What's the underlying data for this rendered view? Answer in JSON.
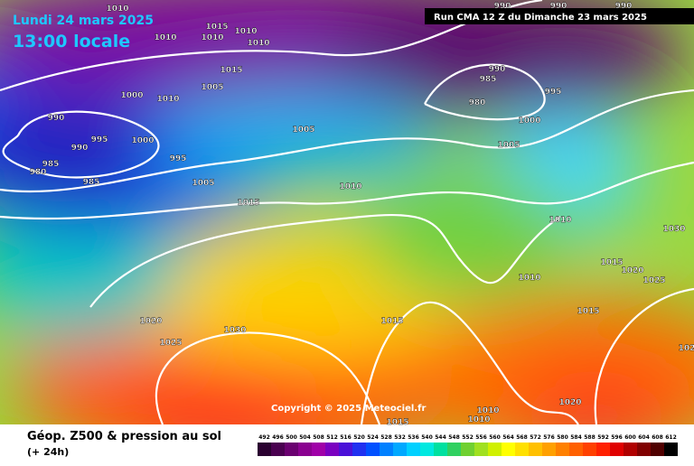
{
  "header": {
    "date": "Lundi 24 mars 2025",
    "time": "13:00 locale",
    "run": "Run CMA 12 Z du Dimanche 23 mars 2025"
  },
  "copyright": "Copyright © 2025 Meteociel.fr",
  "footer": {
    "title": "Géop. Z500 & pression au sol",
    "lead": "(+ 24h)"
  },
  "isobar_labels": [
    "1010",
    "1015",
    "1010",
    "1010",
    "1010",
    "1010",
    "1015",
    "1000",
    "1010",
    "1005",
    "990",
    "995",
    "990",
    "1000",
    "995",
    "985",
    "980",
    "985",
    "1005",
    "1015",
    "1005",
    "1010",
    "990",
    "985",
    "980",
    "995",
    "1000",
    "1005",
    "1010",
    "1030",
    "1015",
    "1020",
    "1025",
    "1010",
    "1015",
    "1015",
    "1020",
    "1030",
    "1025",
    "1020",
    "1010",
    "1010",
    "1015",
    "990",
    "990",
    "990",
    "102"
  ],
  "colorbar": {
    "ticks": [
      492,
      496,
      500,
      504,
      508,
      512,
      516,
      520,
      524,
      528,
      532,
      536,
      540,
      544,
      548,
      552,
      556,
      560,
      564,
      568,
      572,
      576,
      580,
      584,
      588,
      592,
      596,
      600,
      604,
      608,
      612
    ],
    "colors": [
      "#2a0030",
      "#4a0050",
      "#6a0070",
      "#8a0090",
      "#a000a8",
      "#7a00c0",
      "#4a10d8",
      "#2030f0",
      "#0050ff",
      "#0080ff",
      "#00a8ff",
      "#00d0ff",
      "#00e8e0",
      "#00e0a0",
      "#30d060",
      "#70d030",
      "#a0e020",
      "#d0f000",
      "#ffff00",
      "#ffe000",
      "#ffc000",
      "#ffa000",
      "#ff8000",
      "#ff6000",
      "#ff4000",
      "#ff2000",
      "#e00000",
      "#b00000",
      "#800000",
      "#500000",
      "#000000"
    ]
  }
}
